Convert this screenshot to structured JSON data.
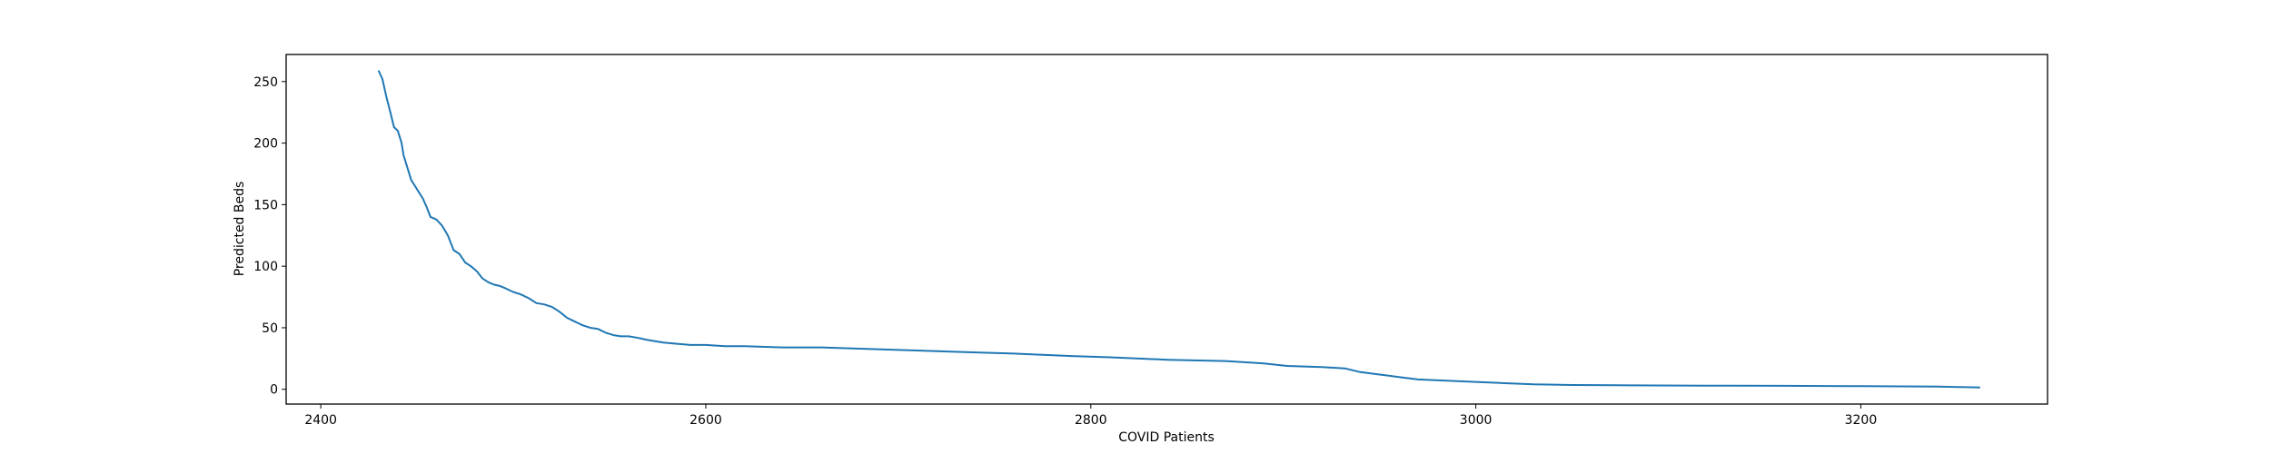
{
  "chart_data": {
    "type": "line",
    "title": "",
    "xlabel": "COVID Patients",
    "ylabel": "Predicted Beds",
    "xlim": [
      2382,
      3297
    ],
    "ylim": [
      -12,
      272
    ],
    "xticks": [
      2400,
      2600,
      2800,
      3000,
      3200
    ],
    "yticks": [
      0,
      50,
      100,
      150,
      200,
      250
    ],
    "grid": false,
    "legend": "none",
    "series": [
      {
        "color": "#1f77b4",
        "x": [
          2430,
          2432,
          2434,
          2436,
          2438,
          2440,
          2442,
          2443,
          2445,
          2447,
          2449,
          2451,
          2453,
          2455,
          2457,
          2460,
          2463,
          2466,
          2469,
          2472,
          2475,
          2478,
          2481,
          2484,
          2487,
          2490,
          2493,
          2496,
          2500,
          2504,
          2508,
          2512,
          2516,
          2520,
          2524,
          2528,
          2532,
          2536,
          2540,
          2544,
          2548,
          2552,
          2556,
          2560,
          2564,
          2570,
          2578,
          2585,
          2592,
          2600,
          2610,
          2620,
          2640,
          2660,
          2680,
          2700,
          2720,
          2740,
          2760,
          2775,
          2790,
          2810,
          2840,
          2870,
          2890,
          2902,
          2920,
          2932,
          2940,
          2950,
          2960,
          2970,
          2985,
          3000,
          3015,
          3030,
          3050,
          3080,
          3120,
          3160,
          3200,
          3240,
          3262
        ],
        "y": [
          259,
          252,
          238,
          226,
          213,
          210,
          200,
          190,
          180,
          170,
          165,
          160,
          155,
          148,
          140,
          138,
          133,
          125,
          113,
          110,
          103,
          100,
          96,
          90,
          87,
          85,
          84,
          82,
          79,
          77,
          74,
          70,
          69,
          67,
          63,
          58,
          55,
          52,
          50,
          49,
          46,
          44,
          43,
          43,
          42,
          40,
          38,
          37,
          36,
          36,
          35,
          35,
          34,
          34,
          33,
          32,
          31,
          30,
          29,
          28,
          27,
          26,
          24,
          23,
          21,
          19,
          18,
          17,
          14,
          12,
          10,
          8,
          7,
          6,
          5,
          4,
          3.5,
          3.2,
          3.0,
          2.8,
          2.5,
          2.2,
          1.5
        ]
      }
    ]
  }
}
